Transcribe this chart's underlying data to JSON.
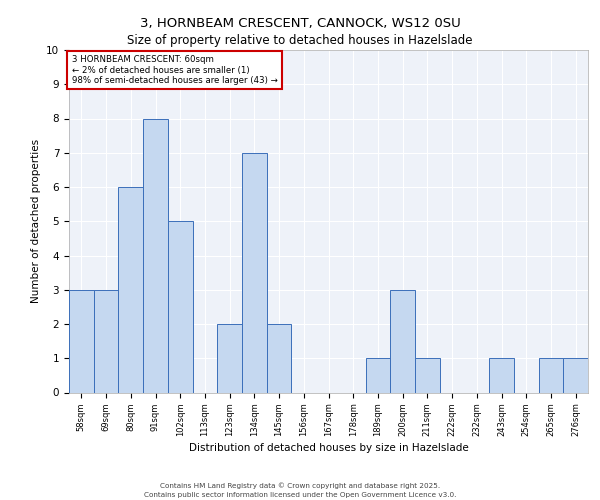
{
  "title_line1": "3, HORNBEAM CRESCENT, CANNOCK, WS12 0SU",
  "title_line2": "Size of property relative to detached houses in Hazelslade",
  "xlabel": "Distribution of detached houses by size in Hazelslade",
  "ylabel": "Number of detached properties",
  "bar_labels": [
    "58sqm",
    "69sqm",
    "80sqm",
    "91sqm",
    "102sqm",
    "113sqm",
    "123sqm",
    "134sqm",
    "145sqm",
    "156sqm",
    "167sqm",
    "178sqm",
    "189sqm",
    "200sqm",
    "211sqm",
    "222sqm",
    "232sqm",
    "243sqm",
    "254sqm",
    "265sqm",
    "276sqm"
  ],
  "bar_values": [
    3,
    3,
    6,
    8,
    5,
    0,
    2,
    7,
    2,
    0,
    0,
    0,
    1,
    3,
    1,
    0,
    0,
    1,
    0,
    1,
    1
  ],
  "bar_color": "#c5d8f0",
  "bar_edge_color": "#3b6fba",
  "ylim": [
    0,
    10
  ],
  "yticks": [
    0,
    1,
    2,
    3,
    4,
    5,
    6,
    7,
    8,
    9,
    10
  ],
  "annotation_box_text": "3 HORNBEAM CRESCENT: 60sqm\n← 2% of detached houses are smaller (1)\n98% of semi-detached houses are larger (43) →",
  "annotation_box_color": "#ffffff",
  "annotation_box_edge_color": "#cc0000",
  "footer_line1": "Contains HM Land Registry data © Crown copyright and database right 2025.",
  "footer_line2": "Contains public sector information licensed under the Open Government Licence v3.0.",
  "bg_color": "#eef2f9",
  "grid_color": "#ffffff",
  "fig_bg_color": "#ffffff"
}
